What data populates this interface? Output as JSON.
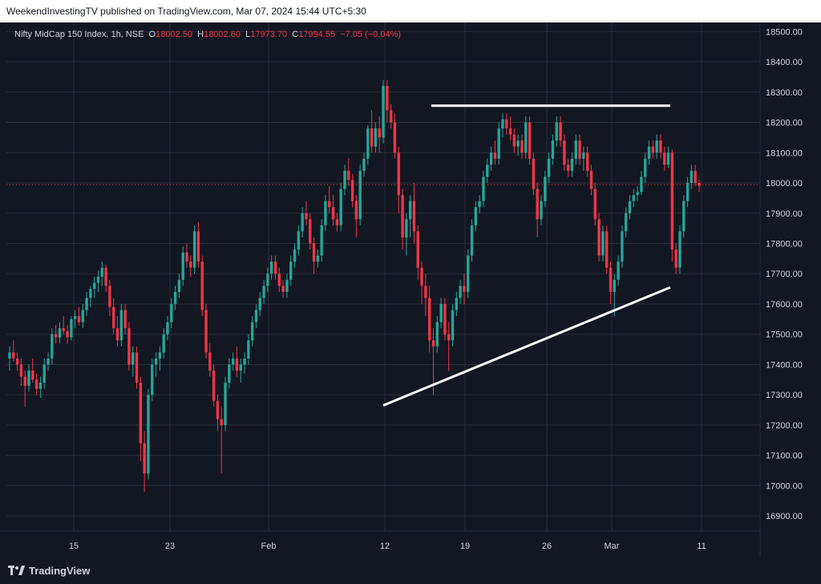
{
  "header": {
    "publisher_text": "WeekendInvestingTV published on TradingView.com, Mar 07, 2024 15:44 UTC+5:30"
  },
  "legend": {
    "symbol": "Nifty MidCap 150 Index, 1h, NSE",
    "open_label": "O",
    "open_value": "18002.50",
    "high_label": "H",
    "high_value": "18002.60",
    "low_label": "L",
    "low_value": "17973.70",
    "close_label": "C",
    "close_value": "17994.55",
    "change": "−7.05 (−0.04%)"
  },
  "footer": {
    "brand": "TradingView"
  },
  "colors": {
    "background": "#131722",
    "up": "#26a69a",
    "down": "#f23645",
    "grid": "#2a2e39",
    "axis_text": "#d1d4dc",
    "last_price_line": "#f23645",
    "trendline": "#ffffff"
  },
  "chart_data": {
    "type": "candlestick",
    "yticks": [
      "18500.00",
      "18400.00",
      "18300.00",
      "18200.00",
      "18100.00",
      "18000.00",
      "17900.00",
      "17800.00",
      "17700.00",
      "17600.00",
      "17500.00",
      "17400.00",
      "17300.00",
      "17200.00",
      "17100.00",
      "17000.00",
      "16900.00"
    ],
    "ylim": [
      16850,
      18530
    ],
    "xticks": [
      "15",
      "23",
      "Feb",
      "12",
      "19",
      "26",
      "Mar",
      "11"
    ],
    "last_price": 17994.55,
    "series": [
      {
        "ohlc": [
          [
            17420,
            17460,
            17380,
            17440
          ],
          [
            17440,
            17480,
            17410,
            17420
          ],
          [
            17420,
            17440,
            17380,
            17400
          ],
          [
            17400,
            17420,
            17330,
            17360
          ],
          [
            17360,
            17380,
            17260,
            17330
          ],
          [
            17330,
            17400,
            17310,
            17380
          ],
          [
            17380,
            17420,
            17340,
            17350
          ],
          [
            17350,
            17370,
            17300,
            17320
          ],
          [
            17320,
            17360,
            17290,
            17340
          ],
          [
            17340,
            17420,
            17320,
            17400
          ],
          [
            17400,
            17440,
            17380,
            17420
          ],
          [
            17420,
            17520,
            17400,
            17500
          ],
          [
            17500,
            17530,
            17470,
            17490
          ],
          [
            17490,
            17540,
            17470,
            17520
          ],
          [
            17520,
            17560,
            17500,
            17510
          ],
          [
            17510,
            17530,
            17470,
            17490
          ],
          [
            17490,
            17560,
            17480,
            17550
          ],
          [
            17550,
            17580,
            17520,
            17560
          ],
          [
            17560,
            17590,
            17530,
            17540
          ],
          [
            17540,
            17600,
            17520,
            17580
          ],
          [
            17580,
            17640,
            17560,
            17620
          ],
          [
            17620,
            17660,
            17590,
            17650
          ],
          [
            17650,
            17690,
            17620,
            17670
          ],
          [
            17670,
            17710,
            17640,
            17690
          ],
          [
            17690,
            17740,
            17660,
            17720
          ],
          [
            17720,
            17730,
            17640,
            17660
          ],
          [
            17660,
            17680,
            17560,
            17590
          ],
          [
            17590,
            17620,
            17500,
            17520
          ],
          [
            17520,
            17560,
            17460,
            17480
          ],
          [
            17480,
            17600,
            17460,
            17580
          ],
          [
            17580,
            17600,
            17500,
            17520
          ],
          [
            17520,
            17540,
            17380,
            17400
          ],
          [
            17400,
            17460,
            17360,
            17440
          ],
          [
            17440,
            17460,
            17320,
            17340
          ],
          [
            17340,
            17360,
            17080,
            17140
          ],
          [
            17140,
            17180,
            16980,
            17040
          ],
          [
            17040,
            17320,
            17020,
            17300
          ],
          [
            17300,
            17420,
            17280,
            17400
          ],
          [
            17400,
            17440,
            17360,
            17420
          ],
          [
            17420,
            17460,
            17380,
            17440
          ],
          [
            17440,
            17520,
            17420,
            17500
          ],
          [
            17500,
            17560,
            17480,
            17540
          ],
          [
            17540,
            17620,
            17520,
            17600
          ],
          [
            17600,
            17660,
            17580,
            17640
          ],
          [
            17640,
            17700,
            17620,
            17680
          ],
          [
            17680,
            17790,
            17660,
            17770
          ],
          [
            17770,
            17800,
            17720,
            17740
          ],
          [
            17740,
            17760,
            17690,
            17720
          ],
          [
            17720,
            17860,
            17700,
            17840
          ],
          [
            17840,
            17870,
            17720,
            17740
          ],
          [
            17740,
            17760,
            17560,
            17580
          ],
          [
            17580,
            17600,
            17420,
            17440
          ],
          [
            17440,
            17470,
            17360,
            17380
          ],
          [
            17380,
            17400,
            17260,
            17280
          ],
          [
            17280,
            17300,
            17180,
            17220
          ],
          [
            17220,
            17260,
            17040,
            17200
          ],
          [
            17200,
            17360,
            17180,
            17340
          ],
          [
            17340,
            17420,
            17320,
            17400
          ],
          [
            17400,
            17440,
            17380,
            17420
          ],
          [
            17420,
            17460,
            17360,
            17380
          ],
          [
            17380,
            17420,
            17340,
            17400
          ],
          [
            17400,
            17440,
            17370,
            17420
          ],
          [
            17420,
            17500,
            17400,
            17480
          ],
          [
            17480,
            17560,
            17460,
            17540
          ],
          [
            17540,
            17600,
            17520,
            17580
          ],
          [
            17580,
            17640,
            17560,
            17620
          ],
          [
            17620,
            17680,
            17600,
            17660
          ],
          [
            17660,
            17720,
            17640,
            17700
          ],
          [
            17700,
            17760,
            17680,
            17740
          ],
          [
            17740,
            17760,
            17680,
            17700
          ],
          [
            17700,
            17720,
            17640,
            17660
          ],
          [
            17660,
            17680,
            17620,
            17640
          ],
          [
            17640,
            17700,
            17620,
            17680
          ],
          [
            17680,
            17760,
            17660,
            17740
          ],
          [
            17740,
            17800,
            17720,
            17780
          ],
          [
            17780,
            17860,
            17760,
            17840
          ],
          [
            17840,
            17920,
            17820,
            17900
          ],
          [
            17900,
            17940,
            17860,
            17880
          ],
          [
            17880,
            17900,
            17780,
            17800
          ],
          [
            17800,
            17820,
            17700,
            17740
          ],
          [
            17740,
            17780,
            17720,
            17760
          ],
          [
            17760,
            17880,
            17740,
            17860
          ],
          [
            17860,
            17960,
            17840,
            17940
          ],
          [
            17940,
            17990,
            17900,
            17920
          ],
          [
            17920,
            17960,
            17860,
            17880
          ],
          [
            17880,
            17900,
            17840,
            17860
          ],
          [
            17860,
            18000,
            17840,
            17980
          ],
          [
            17980,
            18060,
            17960,
            18040
          ],
          [
            18040,
            18080,
            17990,
            18010
          ],
          [
            18010,
            18030,
            17920,
            17940
          ],
          [
            17940,
            17960,
            17820,
            17880
          ],
          [
            17880,
            18060,
            17860,
            18040
          ],
          [
            18040,
            18100,
            18020,
            18080
          ],
          [
            18080,
            18190,
            18060,
            18180
          ],
          [
            18180,
            18240,
            18100,
            18120
          ],
          [
            18120,
            18200,
            18100,
            18180
          ],
          [
            18180,
            18220,
            18100,
            18150
          ],
          [
            18150,
            18340,
            18130,
            18320
          ],
          [
            18320,
            18340,
            18200,
            18240
          ],
          [
            18240,
            18260,
            18180,
            18200
          ],
          [
            18200,
            18230,
            18080,
            18100
          ],
          [
            18100,
            18120,
            17900,
            17960
          ],
          [
            17960,
            17980,
            17780,
            17820
          ],
          [
            17820,
            17900,
            17760,
            17880
          ],
          [
            17880,
            17960,
            17820,
            17940
          ],
          [
            17940,
            18000,
            17800,
            17840
          ],
          [
            17840,
            17860,
            17680,
            17720
          ],
          [
            17720,
            17740,
            17600,
            17660
          ],
          [
            17660,
            17700,
            17560,
            17620
          ],
          [
            17620,
            17660,
            17440,
            17480
          ],
          [
            17480,
            17520,
            17300,
            17460
          ],
          [
            17460,
            17560,
            17440,
            17540
          ],
          [
            17540,
            17620,
            17520,
            17600
          ],
          [
            17600,
            17620,
            17480,
            17500
          ],
          [
            17500,
            17540,
            17380,
            17480
          ],
          [
            17480,
            17600,
            17460,
            17580
          ],
          [
            17580,
            17640,
            17560,
            17620
          ],
          [
            17620,
            17680,
            17600,
            17660
          ],
          [
            17660,
            17700,
            17600,
            17640
          ],
          [
            17640,
            17780,
            17620,
            17760
          ],
          [
            17760,
            17880,
            17740,
            17860
          ],
          [
            17860,
            17940,
            17840,
            17920
          ],
          [
            17920,
            17960,
            17900,
            17940
          ],
          [
            17940,
            18040,
            17920,
            18020
          ],
          [
            18020,
            18080,
            18000,
            18060
          ],
          [
            18060,
            18120,
            18040,
            18100
          ],
          [
            18100,
            18140,
            18060,
            18080
          ],
          [
            18080,
            18200,
            18060,
            18180
          ],
          [
            18180,
            18230,
            18150,
            18210
          ],
          [
            18210,
            18230,
            18160,
            18180
          ],
          [
            18180,
            18220,
            18140,
            18160
          ],
          [
            18160,
            18180,
            18100,
            18120
          ],
          [
            18120,
            18160,
            18090,
            18140
          ],
          [
            18140,
            18160,
            18080,
            18100
          ],
          [
            18100,
            18220,
            18080,
            18200
          ],
          [
            18200,
            18220,
            18060,
            18080
          ],
          [
            18080,
            18100,
            17960,
            17980
          ],
          [
            17980,
            18000,
            17820,
            17880
          ],
          [
            17880,
            17960,
            17860,
            17940
          ],
          [
            17940,
            18040,
            17920,
            18020
          ],
          [
            18020,
            18100,
            18000,
            18080
          ],
          [
            18080,
            18160,
            18060,
            18140
          ],
          [
            18140,
            18220,
            18120,
            18200
          ],
          [
            18200,
            18220,
            18120,
            18140
          ],
          [
            18140,
            18160,
            18040,
            18060
          ],
          [
            18060,
            18080,
            18020,
            18040
          ],
          [
            18040,
            18100,
            18020,
            18080
          ],
          [
            18080,
            18160,
            18060,
            18140
          ],
          [
            18140,
            18160,
            18060,
            18080
          ],
          [
            18080,
            18120,
            18040,
            18100
          ],
          [
            18100,
            18120,
            18020,
            18040
          ],
          [
            18040,
            18060,
            17960,
            17980
          ],
          [
            17980,
            18000,
            17860,
            17880
          ],
          [
            17880,
            17900,
            17740,
            17760
          ],
          [
            17760,
            17860,
            17740,
            17840
          ],
          [
            17840,
            17860,
            17700,
            17720
          ],
          [
            17720,
            17740,
            17600,
            17640
          ],
          [
            17640,
            17700,
            17560,
            17680
          ],
          [
            17680,
            17760,
            17660,
            17740
          ],
          [
            17740,
            17860,
            17720,
            17840
          ],
          [
            17840,
            17920,
            17820,
            17900
          ],
          [
            17900,
            17960,
            17880,
            17940
          ],
          [
            17940,
            17980,
            17920,
            17960
          ],
          [
            17960,
            17990,
            17940,
            17970
          ],
          [
            17970,
            18040,
            17960,
            18020
          ],
          [
            18020,
            18100,
            18000,
            18080
          ],
          [
            18080,
            18140,
            18060,
            18120
          ],
          [
            18120,
            18140,
            18080,
            18100
          ],
          [
            18100,
            18160,
            18080,
            18140
          ],
          [
            18140,
            18160,
            18080,
            18100
          ],
          [
            18100,
            18120,
            18040,
            18060
          ],
          [
            18060,
            18120,
            18050,
            18100
          ],
          [
            18100,
            18110,
            17740,
            17780
          ],
          [
            17780,
            17800,
            17700,
            17720
          ],
          [
            17720,
            17860,
            17700,
            17840
          ],
          [
            17840,
            17960,
            17820,
            17940
          ],
          [
            17940,
            18020,
            17920,
            18000
          ],
          [
            18000,
            18060,
            17980,
            18040
          ],
          [
            18040,
            18060,
            17990,
            18000
          ],
          [
            18000,
            18010,
            17970,
            17990
          ]
        ]
      }
    ]
  }
}
